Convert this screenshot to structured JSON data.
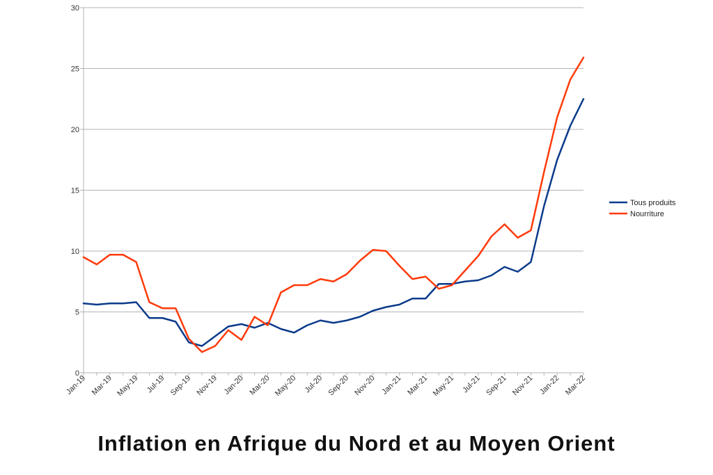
{
  "chart_data": {
    "type": "line",
    "title": "Inflation en Afrique du Nord et au Moyen Orient",
    "xlabel": "",
    "ylabel": "",
    "ylim": [
      0,
      30
    ],
    "yticks": [
      0,
      5,
      10,
      15,
      20,
      25,
      30
    ],
    "grid": true,
    "legend_position": "right",
    "x": [
      "Jan-19",
      "Feb-19",
      "Mar-19",
      "Apr-19",
      "May-19",
      "Jun-19",
      "Jul-19",
      "Aug-19",
      "Sep-19",
      "Oct-19",
      "Nov-19",
      "Dec-19",
      "Jan-20",
      "Feb-20",
      "Mar-20",
      "Apr-20",
      "May-20",
      "Jun-20",
      "Jul-20",
      "Aug-20",
      "Sep-20",
      "Oct-20",
      "Nov-20",
      "Dec-20",
      "Jan-21",
      "Feb-21",
      "Mar-21",
      "Apr-21",
      "May-21",
      "Jun-21",
      "Jul-21",
      "Aug-21",
      "Sep-21",
      "Oct-21",
      "Nov-21",
      "Dec-21",
      "Jan-22",
      "Feb-22",
      "Mar-22"
    ],
    "x_tick_labels": [
      "Jan-19",
      "Mar-19",
      "May-19",
      "Jul-19",
      "Sep-19",
      "Nov-19",
      "Jan-20",
      "Mar-20",
      "May-20",
      "Jul-20",
      "Sep-20",
      "Nov-20",
      "Jan-21",
      "Mar-21",
      "May-21",
      "Jul-21",
      "Sep-21",
      "Nov-21",
      "Jan-22",
      "Mar-22"
    ],
    "series": [
      {
        "name": "Tous produits",
        "color": "#0a3a8a",
        "values": [
          5.7,
          5.6,
          5.7,
          5.7,
          5.8,
          4.5,
          4.5,
          4.2,
          2.5,
          2.2,
          3.0,
          3.8,
          4.0,
          3.7,
          4.1,
          3.6,
          3.3,
          3.9,
          4.3,
          4.1,
          4.3,
          4.6,
          5.1,
          5.4,
          5.6,
          6.1,
          6.1,
          7.3,
          7.3,
          7.5,
          7.6,
          8.0,
          8.7,
          8.3,
          9.1,
          13.7,
          17.5,
          20.3,
          22.5
        ]
      },
      {
        "name": "Nourriture",
        "color": "#ff3a0a",
        "values": [
          9.5,
          8.9,
          9.7,
          9.7,
          9.1,
          5.8,
          5.3,
          5.3,
          2.8,
          1.7,
          2.2,
          3.5,
          2.7,
          4.6,
          3.9,
          6.6,
          7.2,
          7.2,
          7.7,
          7.5,
          8.1,
          9.2,
          10.1,
          10.0,
          8.8,
          7.7,
          7.9,
          6.9,
          7.2,
          8.4,
          9.6,
          11.2,
          12.2,
          11.1,
          11.7,
          16.5,
          21.0,
          24.1,
          25.9
        ]
      }
    ]
  }
}
